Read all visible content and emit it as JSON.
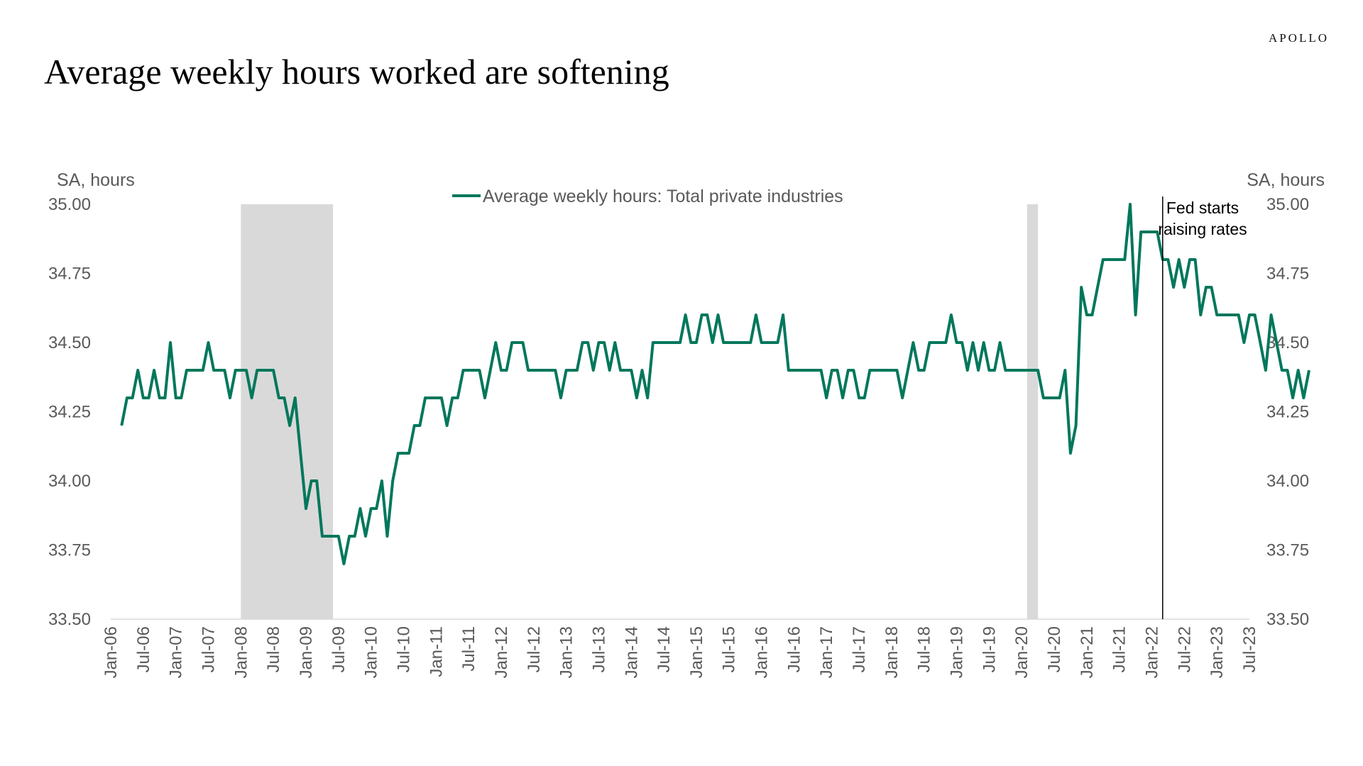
{
  "header": {
    "brand": "APOLLO",
    "title": "Average weekly hours worked are softening"
  },
  "chart_data": {
    "type": "line",
    "title": "Average weekly hours worked are softening",
    "ylabel_left": "SA, hours",
    "ylabel_right": "SA, hours",
    "ylim": [
      33.5,
      35.0
    ],
    "yticks": [
      "33.50",
      "33.75",
      "34.00",
      "34.25",
      "34.50",
      "34.75",
      "35.00"
    ],
    "x_start": "2006-01",
    "x_end": "2023-07",
    "xtick_labels": [
      "Jan-06",
      "Jul-06",
      "Jan-07",
      "Jul-07",
      "Jan-08",
      "Jul-08",
      "Jan-09",
      "Jul-09",
      "Jan-10",
      "Jul-10",
      "Jan-11",
      "Jul-11",
      "Jan-12",
      "Jul-12",
      "Jan-13",
      "Jul-13",
      "Jan-14",
      "Jul-14",
      "Jan-15",
      "Jul-15",
      "Jan-16",
      "Jul-16",
      "Jan-17",
      "Jul-17",
      "Jan-18",
      "Jul-18",
      "Jan-19",
      "Jul-19",
      "Jan-20",
      "Jul-20",
      "Jan-21",
      "Jul-21",
      "Jan-22",
      "Jul-22",
      "Jan-23",
      "Jul-23"
    ],
    "legend_position": "top-center",
    "grid": false,
    "series": [
      {
        "name": "Average weekly hours: Total private industries",
        "color": "#00775b",
        "start": "2006-03",
        "values": [
          34.2,
          34.3,
          34.3,
          34.4,
          34.3,
          34.3,
          34.4,
          34.3,
          34.3,
          34.5,
          34.3,
          34.3,
          34.4,
          34.4,
          34.4,
          34.4,
          34.5,
          34.4,
          34.4,
          34.4,
          34.3,
          34.4,
          34.4,
          34.4,
          34.3,
          34.4,
          34.4,
          34.4,
          34.4,
          34.3,
          34.3,
          34.2,
          34.3,
          34.1,
          33.9,
          34.0,
          34.0,
          33.8,
          33.8,
          33.8,
          33.8,
          33.7,
          33.8,
          33.8,
          33.9,
          33.8,
          33.9,
          33.9,
          34.0,
          33.8,
          34.0,
          34.1,
          34.1,
          34.1,
          34.2,
          34.2,
          34.3,
          34.3,
          34.3,
          34.3,
          34.2,
          34.3,
          34.3,
          34.4,
          34.4,
          34.4,
          34.4,
          34.3,
          34.4,
          34.5,
          34.4,
          34.4,
          34.5,
          34.5,
          34.5,
          34.4,
          34.4,
          34.4,
          34.4,
          34.4,
          34.4,
          34.3,
          34.4,
          34.4,
          34.4,
          34.5,
          34.5,
          34.4,
          34.5,
          34.5,
          34.4,
          34.5,
          34.4,
          34.4,
          34.4,
          34.3,
          34.4,
          34.3,
          34.5,
          34.5,
          34.5,
          34.5,
          34.5,
          34.5,
          34.6,
          34.5,
          34.5,
          34.6,
          34.6,
          34.5,
          34.6,
          34.5,
          34.5,
          34.5,
          34.5,
          34.5,
          34.5,
          34.6,
          34.5,
          34.5,
          34.5,
          34.5,
          34.6,
          34.4,
          34.4,
          34.4,
          34.4,
          34.4,
          34.4,
          34.4,
          34.3,
          34.4,
          34.4,
          34.3,
          34.4,
          34.4,
          34.3,
          34.3,
          34.4,
          34.4,
          34.4,
          34.4,
          34.4,
          34.4,
          34.3,
          34.4,
          34.5,
          34.4,
          34.4,
          34.5,
          34.5,
          34.5,
          34.5,
          34.6,
          34.5,
          34.5,
          34.4,
          34.5,
          34.4,
          34.5,
          34.4,
          34.4,
          34.5,
          34.4,
          34.4,
          34.4,
          34.4,
          34.4,
          34.4,
          34.4,
          34.3,
          34.3,
          34.3,
          34.3,
          34.4,
          34.1,
          34.2,
          34.7,
          34.6,
          34.6,
          34.7,
          34.8,
          34.8,
          34.8,
          34.8,
          34.8,
          35.0,
          34.6,
          34.9,
          34.9,
          34.9,
          34.9,
          34.8,
          34.8,
          34.7,
          34.8,
          34.7,
          34.8,
          34.8,
          34.6,
          34.7,
          34.7,
          34.6,
          34.6,
          34.6,
          34.6,
          34.6,
          34.5,
          34.6,
          34.6,
          34.5,
          34.4,
          34.6,
          34.5,
          34.4,
          34.4,
          34.3,
          34.4,
          34.3,
          34.4
        ]
      }
    ],
    "recession_shading": [
      {
        "start": "2008-01",
        "end": "2009-06"
      },
      {
        "start": "2020-02",
        "end": "2020-04"
      }
    ],
    "annotations": [
      {
        "date": "2022-03",
        "line1": "Fed starts",
        "line2": "raising rates"
      }
    ]
  }
}
